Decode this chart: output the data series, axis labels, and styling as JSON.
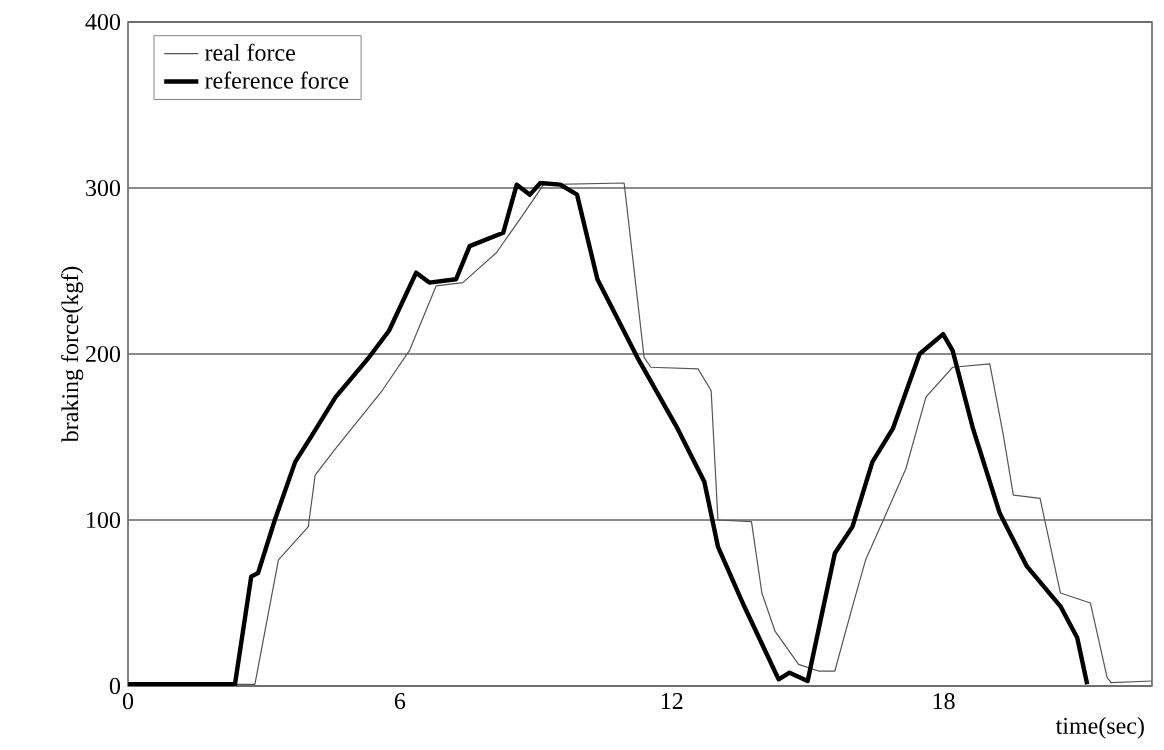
{
  "chart_data": {
    "type": "line",
    "xlabel": "time(sec)",
    "ylabel": "braking force(kgf)",
    "xlim": [
      0,
      22.6
    ],
    "ylim": [
      0,
      400
    ],
    "xticks": [
      0,
      6,
      12,
      18
    ],
    "yticks": [
      0,
      100,
      200,
      300,
      400
    ],
    "grid": "y",
    "legend": "top left",
    "line_style": "solid",
    "marker": "none",
    "series": [
      {
        "name": "real force",
        "color": "#555555",
        "x": [
          0,
          2.8,
          3.32,
          3.98,
          4.13,
          4.58,
          5.61,
          6.21,
          6.8,
          7.39,
          8.13,
          8.72,
          9.17,
          10.95,
          11.39,
          11.54,
          12.58,
          12.87,
          13.02,
          13.76,
          13.99,
          14.28,
          14.8,
          15.24,
          15.6,
          15.99,
          16.28,
          16.72,
          17.17,
          17.61,
          18.2,
          19.02,
          19.32,
          19.54,
          20.13,
          20.58,
          21.24,
          21.61,
          21.7,
          22.6
        ],
        "values": [
          1,
          1,
          76,
          96,
          127,
          143,
          178,
          202,
          241,
          243,
          261,
          284,
          302,
          303,
          198,
          192,
          191,
          178,
          100,
          99,
          56,
          33,
          13,
          9,
          9,
          48,
          76,
          103,
          131,
          174,
          192,
          194,
          151,
          115,
          113,
          56,
          50,
          5,
          2,
          3
        ]
      },
      {
        "name": "reference force",
        "color": "#000000",
        "x": [
          0,
          2.36,
          2.72,
          2.87,
          3.24,
          3.69,
          4.06,
          4.58,
          5.32,
          5.76,
          6.36,
          6.65,
          7.24,
          7.54,
          8.28,
          8.58,
          8.87,
          9.1,
          9.54,
          9.91,
          10.36,
          11.24,
          12.13,
          12.72,
          13.02,
          13.6,
          14.36,
          14.6,
          15.0,
          15.6,
          15.99,
          16.43,
          16.88,
          17.47,
          17.99,
          18.2,
          18.65,
          19.24,
          19.84,
          20.58,
          20.95,
          21.17
        ],
        "values": [
          1,
          1,
          66,
          68,
          100,
          135,
          151,
          174,
          198,
          214,
          249,
          243,
          245,
          265,
          273,
          302,
          296,
          303,
          302,
          296,
          245,
          198,
          155,
          123,
          84,
          48,
          4,
          8,
          3,
          80,
          96,
          135,
          155,
          200,
          212,
          202,
          155,
          104,
          72,
          48,
          29,
          1
        ]
      }
    ]
  }
}
